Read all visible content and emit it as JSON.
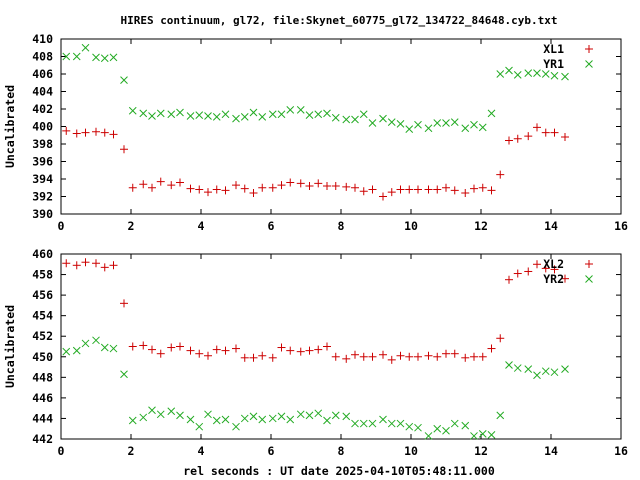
{
  "title": "HIRES continuum, gl72, file:Skynet_60775_gl72_134722_84648.cyb.txt",
  "x_axis_label": "rel seconds : UT date 2025-04-10T05:48:11.000",
  "colors": {
    "xl": "#cc0000",
    "yr": "#22aa22"
  },
  "chart_data": [
    {
      "type": "scatter",
      "ylabel": "Uncalibrated",
      "xlim": [
        0,
        16
      ],
      "ylim": [
        390,
        410
      ],
      "xticks": [
        0,
        2,
        4,
        6,
        8,
        10,
        12,
        14,
        16
      ],
      "yticks": [
        390,
        392,
        394,
        396,
        398,
        400,
        402,
        404,
        406,
        408,
        410
      ],
      "legend_position": "top-right",
      "series": [
        {
          "name": "XL1",
          "marker": "+",
          "x": [
            0.15,
            0.45,
            0.7,
            1.0,
            1.25,
            1.5,
            1.8,
            2.05,
            2.35,
            2.6,
            2.85,
            3.15,
            3.4,
            3.7,
            3.95,
            4.2,
            4.45,
            4.7,
            5.0,
            5.25,
            5.5,
            5.75,
            6.05,
            6.3,
            6.55,
            6.85,
            7.1,
            7.35,
            7.6,
            7.85,
            8.15,
            8.4,
            8.65,
            8.9,
            9.2,
            9.45,
            9.7,
            9.95,
            10.2,
            10.5,
            10.75,
            11.0,
            11.25,
            11.55,
            11.8,
            12.05,
            12.3,
            12.55,
            12.8,
            13.05,
            13.35,
            13.6,
            13.85,
            14.1,
            14.4
          ],
          "y": [
            399.5,
            399.2,
            399.3,
            399.4,
            399.3,
            399.1,
            397.4,
            393.0,
            393.4,
            393.0,
            393.7,
            393.3,
            393.6,
            392.9,
            392.8,
            392.5,
            392.8,
            392.7,
            393.3,
            392.9,
            392.4,
            393.0,
            393.0,
            393.3,
            393.6,
            393.5,
            393.2,
            393.5,
            393.2,
            393.2,
            393.1,
            393.0,
            392.6,
            392.8,
            392.0,
            392.5,
            392.8,
            392.8,
            392.8,
            392.8,
            392.8,
            393.0,
            392.7,
            392.4,
            392.9,
            393.0,
            392.7,
            394.5,
            398.4,
            398.6,
            398.9,
            399.9,
            399.3,
            399.3,
            398.8
          ]
        },
        {
          "name": "YR1",
          "marker": "x",
          "x": [
            0.15,
            0.45,
            0.7,
            1.0,
            1.25,
            1.5,
            1.8,
            2.05,
            2.35,
            2.6,
            2.85,
            3.15,
            3.4,
            3.7,
            3.95,
            4.2,
            4.45,
            4.7,
            5.0,
            5.25,
            5.5,
            5.75,
            6.05,
            6.3,
            6.55,
            6.85,
            7.1,
            7.35,
            7.6,
            7.85,
            8.15,
            8.4,
            8.65,
            8.9,
            9.2,
            9.45,
            9.7,
            9.95,
            10.2,
            10.5,
            10.75,
            11.0,
            11.25,
            11.55,
            11.8,
            12.05,
            12.3,
            12.55,
            12.8,
            13.05,
            13.35,
            13.6,
            13.85,
            14.1,
            14.4
          ],
          "y": [
            408.0,
            408.0,
            409.0,
            407.9,
            407.8,
            407.9,
            405.3,
            401.8,
            401.5,
            401.2,
            401.5,
            401.4,
            401.6,
            401.2,
            401.3,
            401.2,
            401.1,
            401.4,
            400.9,
            401.1,
            401.6,
            401.1,
            401.4,
            401.4,
            401.9,
            401.9,
            401.3,
            401.4,
            401.5,
            401.0,
            400.8,
            400.8,
            401.4,
            400.4,
            400.9,
            400.5,
            400.3,
            399.7,
            400.2,
            399.8,
            400.4,
            400.4,
            400.5,
            399.8,
            400.2,
            399.9,
            401.5,
            406.0,
            406.4,
            405.9,
            406.1,
            406.1,
            406.0,
            405.8,
            405.7
          ]
        }
      ]
    },
    {
      "type": "scatter",
      "ylabel": "Uncalibrated",
      "xlim": [
        0,
        16
      ],
      "ylim": [
        442,
        460
      ],
      "xticks": [
        0,
        2,
        4,
        6,
        8,
        10,
        12,
        14,
        16
      ],
      "yticks": [
        442,
        444,
        446,
        448,
        450,
        452,
        454,
        456,
        458,
        460
      ],
      "legend_position": "top-right",
      "series": [
        {
          "name": "XL2",
          "marker": "+",
          "x": [
            0.15,
            0.45,
            0.7,
            1.0,
            1.25,
            1.5,
            1.8,
            2.05,
            2.35,
            2.6,
            2.85,
            3.15,
            3.4,
            3.7,
            3.95,
            4.2,
            4.45,
            4.7,
            5.0,
            5.25,
            5.5,
            5.75,
            6.05,
            6.3,
            6.55,
            6.85,
            7.1,
            7.35,
            7.6,
            7.85,
            8.15,
            8.4,
            8.65,
            8.9,
            9.2,
            9.45,
            9.7,
            9.95,
            10.2,
            10.5,
            10.75,
            11.0,
            11.25,
            11.55,
            11.8,
            12.05,
            12.3,
            12.55,
            12.8,
            13.05,
            13.35,
            13.6,
            13.85,
            14.1,
            14.4
          ],
          "y": [
            459.1,
            458.9,
            459.2,
            459.1,
            458.7,
            458.9,
            455.2,
            451.0,
            451.1,
            450.7,
            450.3,
            450.9,
            451.0,
            450.6,
            450.3,
            450.1,
            450.7,
            450.6,
            450.8,
            449.9,
            449.9,
            450.1,
            449.9,
            450.9,
            450.6,
            450.5,
            450.6,
            450.7,
            451.0,
            450.0,
            449.8,
            450.2,
            450.0,
            450.0,
            450.2,
            449.7,
            450.1,
            450.0,
            450.0,
            450.1,
            450.0,
            450.3,
            450.3,
            449.9,
            450.0,
            450.0,
            450.8,
            451.8,
            457.5,
            458.1,
            458.3,
            459.0,
            458.6,
            458.5,
            457.6
          ]
        },
        {
          "name": "YR2",
          "marker": "x",
          "x": [
            0.15,
            0.45,
            0.7,
            1.0,
            1.25,
            1.5,
            1.8,
            2.05,
            2.35,
            2.6,
            2.85,
            3.15,
            3.4,
            3.7,
            3.95,
            4.2,
            4.45,
            4.7,
            5.0,
            5.25,
            5.5,
            5.75,
            6.05,
            6.3,
            6.55,
            6.85,
            7.1,
            7.35,
            7.6,
            7.85,
            8.15,
            8.4,
            8.65,
            8.9,
            9.2,
            9.45,
            9.7,
            9.95,
            10.2,
            10.5,
            10.75,
            11.0,
            11.25,
            11.55,
            11.8,
            12.05,
            12.3,
            12.55,
            12.8,
            13.05,
            13.35,
            13.6,
            13.85,
            14.1,
            14.4
          ],
          "y": [
            450.5,
            450.6,
            451.3,
            451.6,
            450.9,
            450.8,
            448.3,
            443.8,
            444.1,
            444.8,
            444.4,
            444.7,
            444.3,
            443.9,
            443.2,
            444.4,
            443.8,
            443.9,
            443.2,
            444.0,
            444.2,
            443.9,
            444.0,
            444.2,
            443.9,
            444.4,
            444.3,
            444.5,
            443.8,
            444.3,
            444.2,
            443.5,
            443.5,
            443.5,
            443.9,
            443.5,
            443.5,
            443.2,
            443.1,
            442.3,
            443.0,
            442.8,
            443.5,
            443.3,
            442.3,
            442.5,
            442.4,
            444.3,
            449.2,
            448.9,
            448.8,
            448.2,
            448.6,
            448.5,
            448.8
          ]
        }
      ]
    }
  ]
}
